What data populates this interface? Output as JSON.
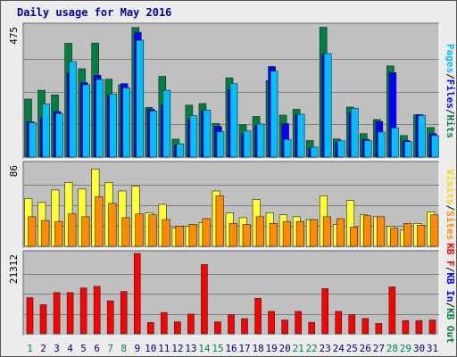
{
  "title": "Daily usage for May 2016",
  "chart_data": [
    {
      "type": "bar",
      "panel": "pages-files-hits",
      "ymax_label": "475",
      "ylim": [
        0,
        475
      ],
      "grid": true,
      "legend": "right side, vertical",
      "legend_items": [
        {
          "text": "Pages",
          "color": "#00bfff"
        },
        {
          "text": "/",
          "color": "#000000"
        },
        {
          "text": "Files",
          "color": "#0000ff"
        },
        {
          "text": "/",
          "color": "#000000"
        },
        {
          "text": "Hits",
          "color": "#008040"
        }
      ],
      "series": [
        {
          "name": "Hits",
          "color": "#008040",
          "values": [
            210,
            242,
            225,
            412,
            320,
            413,
            282,
            262,
            469,
            180,
            292,
            65,
            188,
            194,
            122,
            287,
            117,
            147,
            277,
            152,
            173,
            60,
            470,
            66,
            181,
            85,
            136,
            330,
            78,
            153,
            107
          ]
        },
        {
          "name": "Files",
          "color": "#0000ff",
          "values": [
            128,
            142,
            165,
            305,
            270,
            296,
            224,
            266,
            452,
            173,
            189,
            44,
            136,
            169,
            111,
            245,
            84,
            114,
            328,
            121,
            153,
            33,
            373,
            55,
            162,
            64,
            129,
            306,
            60,
            154,
            85
          ]
        },
        {
          "name": "Pages",
          "color": "#00bfff",
          "values": [
            125,
            192,
            158,
            346,
            262,
            281,
            228,
            251,
            423,
            167,
            242,
            48,
            150,
            170,
            92,
            266,
            95,
            120,
            311,
            64,
            155,
            36,
            375,
            59,
            177,
            60,
            91,
            106,
            56,
            151,
            78
          ]
        }
      ]
    },
    {
      "type": "bar",
      "panel": "visits-sites",
      "ymax_label": "86",
      "ylim": [
        0,
        86
      ],
      "grid": true,
      "legend": "right side, vertical",
      "legend_items": [
        {
          "text": "Visits",
          "color": "#ffd700"
        },
        {
          "text": "/",
          "color": "#000000"
        },
        {
          "text": "Sites",
          "color": "#ff8c00"
        }
      ],
      "series": [
        {
          "name": "Visits",
          "color": "#ffff33",
          "values": [
            50,
            46,
            59,
            67,
            60,
            81,
            67,
            58,
            63,
            35,
            44,
            19,
            21,
            25,
            58,
            35,
            30,
            49,
            35,
            33,
            31,
            28,
            53,
            23,
            48,
            33,
            31,
            21,
            17,
            24,
            36
          ]
        },
        {
          "name": "Sites",
          "color": "#ff8c00",
          "values": [
            31,
            27,
            26,
            34,
            31,
            52,
            45,
            30,
            34,
            33,
            28,
            21,
            23,
            29,
            53,
            24,
            23,
            31,
            24,
            26,
            26,
            28,
            31,
            29,
            20,
            32,
            31,
            19,
            24,
            22,
            33
          ]
        }
      ]
    },
    {
      "type": "bar",
      "panel": "kbytes",
      "ymax_label": "21312",
      "ylim": [
        0,
        21312
      ],
      "grid": true,
      "legend": "right side, vertical",
      "legend_items": [
        {
          "text": "KB F",
          "color": "#ff0000"
        },
        {
          "text": "/",
          "color": "#000000"
        },
        {
          "text": "KB In",
          "color": "#0000ff"
        },
        {
          "text": "/",
          "color": "#000000"
        },
        {
          "text": "KB Out",
          "color": "#008040"
        }
      ],
      "series": [
        {
          "name": "KB F",
          "color": "#ff0000",
          "values": [
            9580,
            7720,
            10940,
            10940,
            12160,
            12590,
            8760,
            11220,
            21312,
            2990,
            5640,
            3170,
            5230,
            18370,
            3170,
            5080,
            4030,
            9410,
            5940,
            3650,
            5940,
            3040,
            11990,
            5940,
            5080,
            4070,
            2740,
            12440,
            3510,
            3510,
            3660
          ]
        }
      ]
    }
  ],
  "x_days": [
    "1",
    "2",
    "3",
    "4",
    "5",
    "6",
    "7",
    "8",
    "9",
    "10",
    "11",
    "12",
    "13",
    "14",
    "15",
    "16",
    "17",
    "18",
    "19",
    "20",
    "21",
    "22",
    "23",
    "24",
    "25",
    "26",
    "27",
    "28",
    "29",
    "30",
    "31"
  ],
  "weekend_days": [
    "1",
    "7",
    "8",
    "14",
    "15",
    "21",
    "22",
    "28",
    "29"
  ],
  "colors": {
    "weekend": "#00805a",
    "weekday": "#000080",
    "panel_bg": "#c0c0c0",
    "page_bg": "#ececec",
    "grid": "#808080"
  }
}
